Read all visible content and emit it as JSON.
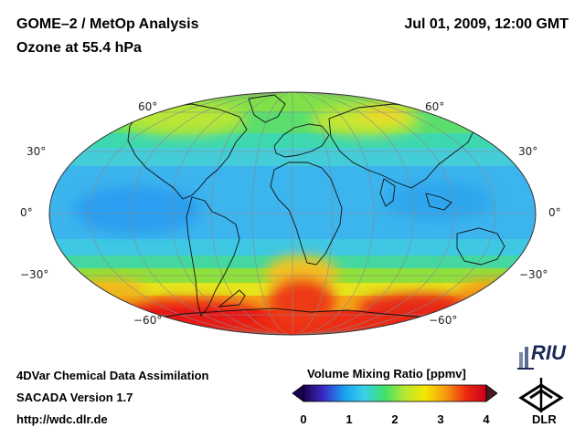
{
  "header": {
    "title_line1": "GOME–2 / MetOp Analysis",
    "title_line2": "Ozone at 55.4 hPa",
    "datetime": "Jul 01, 2009, 12:00 GMT"
  },
  "footer": {
    "credit_line1": "4DVar Chemical Data Assimilation",
    "credit_line2": "SACADA Version 1.7",
    "credit_line3": "http://wdc.dlr.de"
  },
  "colorbar": {
    "title": "Volume Mixing Ratio [ppmv]",
    "ticks": [
      "0",
      "1",
      "2",
      "3",
      "4"
    ],
    "range": [
      0,
      4
    ],
    "colors": [
      "#1a0050",
      "#3a2cc8",
      "#1aa0f0",
      "#39d2e8",
      "#3ee06a",
      "#b8e830",
      "#f5e600",
      "#f59a10",
      "#ee2a10",
      "#c8001e"
    ]
  },
  "map": {
    "projection": "Mollweide",
    "latitude_labels": {
      "left": [
        "60°",
        "30°",
        "0°",
        "−30°",
        "−60°"
      ],
      "right": [
        "60°",
        "30°",
        "0°",
        "−30°",
        "−60°"
      ]
    }
  },
  "logos": {
    "riu_text": "RIU",
    "dlr_text": "DLR"
  },
  "icons": {
    "riu": "riu-logo-icon",
    "dlr": "dlr-logo-icon",
    "left_arrow": "colorbar-min-arrow-icon",
    "right_arrow": "colorbar-max-arrow-icon"
  }
}
